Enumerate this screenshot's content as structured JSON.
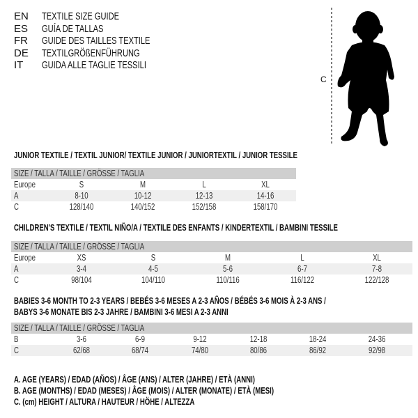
{
  "languages": [
    {
      "code": "EN",
      "title": "TEXTILE SIZE GUIDE"
    },
    {
      "code": "ES",
      "title": "GUÍA DE TALLAS"
    },
    {
      "code": "FR",
      "title": "GUIDE DES TAILLES TEXTILE"
    },
    {
      "code": "DE",
      "title": "TEXTILGRÖßENFÜHRUNG"
    },
    {
      "code": "IT",
      "title": "GUIDA ALLE TAGLIE TESSILI"
    }
  ],
  "figure": {
    "measure_label": "C",
    "icon": "baby-silhouette"
  },
  "size_header": "SIZE / TALLA / TAILLE / GRÖSSE / TAGLIA",
  "tables": [
    {
      "title": "JUNIOR TEXTILE / TEXTIL JUNIOR/ TEXTILE JUNIOR / JUNIORTEXTIL / JUNIOR TESSILE",
      "rows": [
        {
          "label": "Europe",
          "values": [
            "S",
            "M",
            "L",
            "XL"
          ]
        },
        {
          "label": "A",
          "values": [
            "8-10",
            "10-12",
            "12-13",
            "14-16"
          ]
        },
        {
          "label": "C",
          "values": [
            "128/140",
            "140/152",
            "152/158",
            "158/170"
          ]
        }
      ]
    },
    {
      "title": "CHILDREN'S TEXTILE / TEXTIL NIÑO/A / TEXTILE DES ENFANTS / KINDERTEXTIL / BAMBINI TESSILE",
      "rows": [
        {
          "label": "Europe",
          "values": [
            "XS",
            "S",
            "M",
            "L",
            "XL"
          ]
        },
        {
          "label": "A",
          "values": [
            "3-4",
            "4-5",
            "5-6",
            "6-7",
            "7-8"
          ]
        },
        {
          "label": "C",
          "values": [
            "98/104",
            "104/110",
            "110/116",
            "116/122",
            "122/128"
          ]
        }
      ]
    },
    {
      "title": "BABIES 3-6 MONTH TO 2-3 YEARS / BEBÉS 3-6 MESES A 2-3 AÑOS / BÉBÉS 3-6 MOIS À 2-3 ANS /",
      "title2": "BABYS 3-6 MONATE BIS 2-3 JAHRE / BAMBINI 3-6 MESI A 2-3 ANNI",
      "rows": [
        {
          "label": "B",
          "values": [
            "3-6",
            "6-9",
            "9-12",
            "12-18",
            "18-24",
            "24-36"
          ]
        },
        {
          "label": "C",
          "values": [
            "62/68",
            "68/74",
            "74/80",
            "80/86",
            "86/92",
            "92/98"
          ]
        }
      ]
    }
  ],
  "legend": [
    "A. AGE (YEARS) / EDAD (AÑOS) / ÂGE (ANS) / ALTER (JAHRE) / ETÀ (ANNI)",
    "B. AGE (MONTHS) / EDAD (MESES) / ÂGE (MOIS) / ALTER (MONATE) / ETÀ (MESI)",
    "C. (cm) HEIGHT / ALTURA / HAUTEUR / HÖHE / ALTEZZA"
  ]
}
